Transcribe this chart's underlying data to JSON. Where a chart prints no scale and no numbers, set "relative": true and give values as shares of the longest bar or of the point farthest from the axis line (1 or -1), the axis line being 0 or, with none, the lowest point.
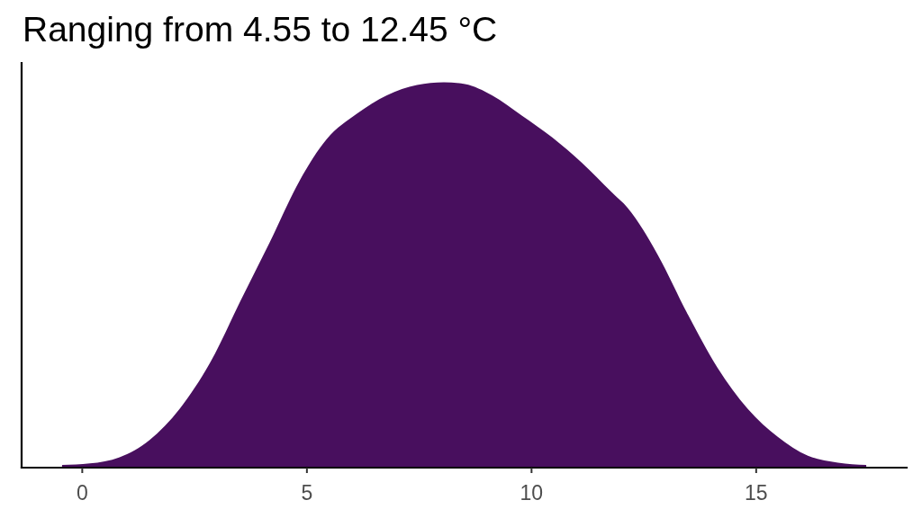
{
  "chart_data": {
    "type": "area",
    "title": "Ranging from 4.55 to 12.45 °C",
    "relative": true,
    "color": "#480f5e",
    "x": [
      -0.45,
      0.17,
      0.83,
      1.5,
      2.17,
      2.84,
      3.51,
      4.17,
      4.84,
      5.44,
      6.11,
      6.78,
      7.45,
      8.05,
      8.52,
      9.12,
      9.79,
      10.46,
      11.12,
      11.79,
      12.14,
      12.81,
      13.48,
      14.14,
      14.81,
      15.48,
      16.15,
      16.82,
      17.45
    ],
    "values": [
      0.007,
      0.011,
      0.027,
      0.072,
      0.153,
      0.271,
      0.43,
      0.584,
      0.745,
      0.852,
      0.918,
      0.966,
      0.993,
      1,
      0.995,
      0.966,
      0.913,
      0.857,
      0.791,
      0.714,
      0.674,
      0.552,
      0.397,
      0.259,
      0.153,
      0.08,
      0.031,
      0.013,
      0.007
    ],
    "xlim": [
      -1.35,
      18.35
    ],
    "xticks": [
      0,
      5,
      10,
      15
    ]
  }
}
